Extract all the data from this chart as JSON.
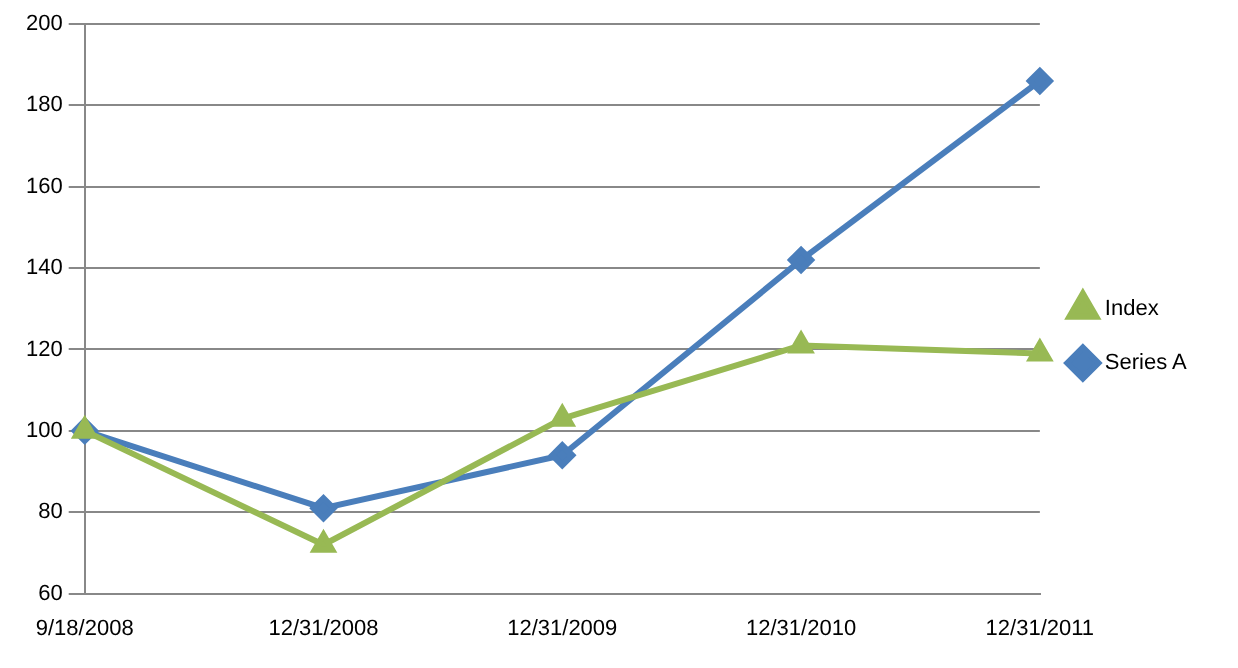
{
  "chart_data": {
    "type": "line",
    "categories": [
      "9/18/2008",
      "12/31/2008",
      "12/31/2009",
      "12/31/2010",
      "12/31/2011"
    ],
    "series": [
      {
        "name": "Series A",
        "color": "#4a7ebb",
        "marker": "diamond",
        "values": [
          100,
          81,
          94,
          142,
          186
        ]
      },
      {
        "name": "Index",
        "color": "#98b954",
        "marker": "triangle",
        "values": [
          100,
          72,
          103,
          121,
          119
        ]
      }
    ],
    "ylim": [
      60,
      200
    ],
    "yticks": [
      60,
      80,
      100,
      120,
      140,
      160,
      180,
      200
    ],
    "grid": "y",
    "legend": "right"
  }
}
